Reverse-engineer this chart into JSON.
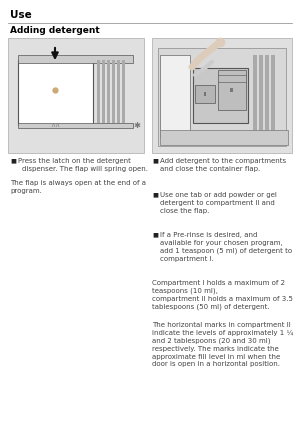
{
  "page_bg": "#ffffff",
  "title": "Use",
  "section_title": "Adding detergent",
  "title_color": "#000000",
  "title_fontsize": 7.5,
  "section_fontsize": 6.5,
  "body_fontsize": 5.0,
  "left_bullet1_line1": "Press the latch on the detergent",
  "left_bullet1_line2": "dispenser. The flap will spring open.",
  "left_note": "The flap is always open at the end of a\nprogram.",
  "right_bullet1": "Add detergent to the compartments\nand close the container flap.",
  "right_bullet2": "Use one tab or add powder or gel\ndetergent to compartment II and\nclose the flap.",
  "right_bullet3": "If a Pre-rinse is desired, and\navailable for your chosen program,\nadd 1 teaspoon (5 ml) of detergent to\ncompartment I.",
  "right_note1": "Compartment I holds a maximum of 2\nteaspoons (10 ml),\ncompartment II holds a maximum of 3.5\ntablespoons (50 ml) of detergent.",
  "right_note2": "The horizontal marks in compartment II\nindicate the levels of approximately 1 ¼\nand 2 tablespoons (20 and 30 ml)\nrespectively. The marks indicate the\napproximate fill level in ml when the\ndoor is open in a horizontal position.",
  "text_color": "#444444",
  "img_bg_left": "#e0e0e0",
  "img_bg_right": "#e0e0e0",
  "line_color": "#aaaaaa",
  "bullet_color": "#222222"
}
